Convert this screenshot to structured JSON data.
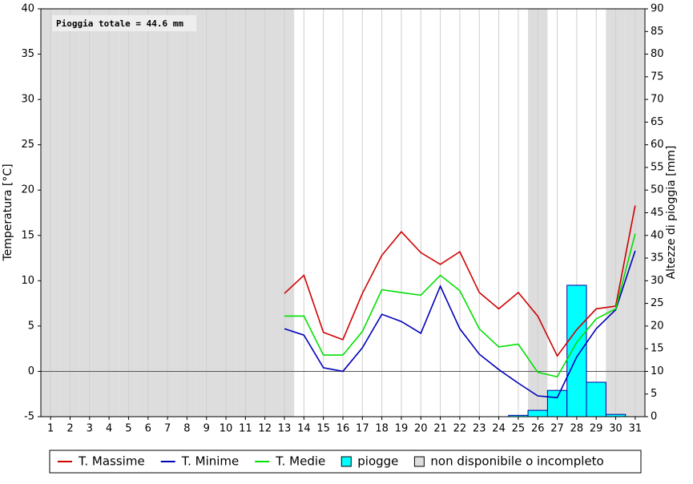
{
  "chart_data": {
    "type": "line",
    "ylabel": "Temperatura [°C]",
    "y2label": "Altezze di pioggia [mm]",
    "annotation": "Pioggia totale = 44.6 mm",
    "x": [
      1,
      2,
      3,
      4,
      5,
      6,
      7,
      8,
      9,
      10,
      11,
      12,
      13,
      14,
      15,
      16,
      17,
      18,
      19,
      20,
      21,
      22,
      23,
      24,
      25,
      26,
      27,
      28,
      29,
      30,
      31
    ],
    "xlim": [
      0.5,
      31.5
    ],
    "ylim": [
      -5,
      40
    ],
    "yticks": [
      -5,
      0,
      5,
      10,
      15,
      20,
      25,
      30,
      35,
      40
    ],
    "y2lim": [
      0,
      90
    ],
    "y2ticks": [
      0,
      5,
      10,
      15,
      20,
      25,
      30,
      35,
      40,
      45,
      50,
      55,
      60,
      65,
      70,
      75,
      80,
      85,
      90
    ],
    "series": [
      {
        "name": "T. Massime",
        "color": "#d00000",
        "values": [
          null,
          null,
          null,
          null,
          null,
          null,
          null,
          null,
          null,
          null,
          null,
          null,
          8.6,
          10.6,
          4.3,
          3.5,
          8.6,
          12.8,
          15.4,
          13.1,
          11.8,
          13.2,
          8.7,
          6.9,
          8.7,
          6.1,
          1.7,
          4.6,
          6.9,
          7.2,
          18.3
        ]
      },
      {
        "name": "T. Minime",
        "color": "#0000b8",
        "values": [
          null,
          null,
          null,
          null,
          null,
          null,
          null,
          null,
          null,
          null,
          null,
          null,
          4.7,
          4.0,
          0.4,
          0.0,
          2.6,
          6.3,
          5.5,
          4.2,
          9.4,
          4.7,
          1.9,
          0.2,
          -1.3,
          -2.7,
          -2.9,
          1.6,
          4.7,
          6.8,
          13.3
        ]
      },
      {
        "name": "T. Medie",
        "color": "#00e000",
        "values": [
          null,
          null,
          null,
          null,
          null,
          null,
          null,
          null,
          null,
          null,
          null,
          null,
          6.1,
          6.1,
          1.8,
          1.8,
          4.4,
          9.0,
          8.7,
          8.4,
          10.6,
          8.9,
          4.7,
          2.7,
          3.0,
          -0.1,
          -0.6,
          3.2,
          5.8,
          6.9,
          15.2
        ]
      },
      {
        "name": "piogge",
        "type": "bar",
        "axis": "y2",
        "color": "#00ffff",
        "values": [
          null,
          null,
          null,
          null,
          null,
          null,
          null,
          null,
          null,
          null,
          null,
          null,
          0,
          0,
          0,
          0,
          0,
          0,
          0,
          0,
          0,
          0,
          0,
          0,
          0.3,
          1.4,
          5.8,
          29.0,
          7.6,
          0.5,
          0
        ]
      }
    ],
    "unavailable": {
      "label": "non disponibile o incompleto",
      "color": "#dddddd",
      "days": [
        1,
        2,
        3,
        4,
        5,
        6,
        7,
        8,
        9,
        10,
        11,
        12,
        13,
        26,
        30,
        31
      ]
    }
  }
}
